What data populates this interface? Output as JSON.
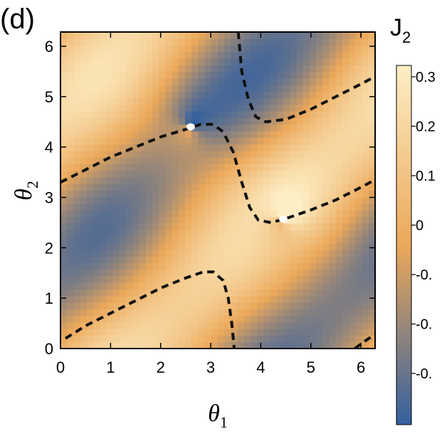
{
  "panel_label": "(d)",
  "colors": {
    "low": "#34609f",
    "mid": "#eba85a",
    "high": "#fdeec5",
    "contour": "#111111",
    "critical_point": "#ffffff"
  },
  "chart_data": {
    "type": "heatmap",
    "title": "",
    "xlabel": {
      "main": "θ",
      "sub": "1"
    },
    "ylabel": {
      "main": "θ",
      "sub": "2"
    },
    "xlim": [
      0,
      6.2832
    ],
    "ylim": [
      0,
      6.2832
    ],
    "xticks": [
      0,
      1,
      2,
      3,
      4,
      5,
      6
    ],
    "yticks": [
      0,
      1,
      2,
      3,
      4,
      5,
      6
    ],
    "xtick_labels": [
      "0",
      "1",
      "2",
      "3",
      "4",
      "5",
      "6"
    ],
    "ytick_labels": [
      "0",
      "1",
      "2",
      "3",
      "4",
      "5",
      "6"
    ],
    "grid": false,
    "colorbar": {
      "title": {
        "main": "J",
        "sub": "2"
      },
      "range": [
        -0.35,
        0.35
      ],
      "tick_labels": [
        "0.3",
        "0.2",
        "0.1",
        "0",
        "-0.",
        "-0.",
        "-0."
      ]
    },
    "critical_points": [
      {
        "x": 2.6,
        "y": 4.4
      },
      {
        "x": 4.45,
        "y": 2.57
      }
    ],
    "zero_contours": [
      {
        "points": [
          [
            0,
            3.3
          ],
          [
            0.5,
            3.55
          ],
          [
            1.0,
            3.8
          ],
          [
            1.5,
            4.0
          ],
          [
            2.0,
            4.2
          ],
          [
            2.5,
            4.35
          ],
          [
            2.8,
            4.45
          ],
          [
            3.05,
            4.45
          ],
          [
            3.25,
            4.3
          ],
          [
            3.45,
            3.9
          ],
          [
            3.62,
            3.3
          ],
          [
            3.78,
            2.8
          ],
          [
            3.95,
            2.55
          ],
          [
            4.2,
            2.5
          ],
          [
            4.5,
            2.58
          ],
          [
            5.0,
            2.75
          ],
          [
            5.5,
            2.95
          ],
          [
            6.0,
            3.2
          ],
          [
            6.2832,
            3.35
          ]
        ]
      },
      {
        "points": [
          [
            0.1,
            0.2
          ],
          [
            0.5,
            0.45
          ],
          [
            1.0,
            0.7
          ],
          [
            1.5,
            0.95
          ],
          [
            2.0,
            1.2
          ],
          [
            2.5,
            1.4
          ],
          [
            2.85,
            1.52
          ],
          [
            3.05,
            1.52
          ],
          [
            3.25,
            1.35
          ],
          [
            3.35,
            1.0
          ],
          [
            3.42,
            0.5
          ],
          [
            3.47,
            0
          ]
        ]
      },
      {
        "points": [
          [
            3.55,
            6.2832
          ],
          [
            3.62,
            5.5
          ],
          [
            3.75,
            4.95
          ],
          [
            3.9,
            4.6
          ],
          [
            4.1,
            4.5
          ],
          [
            4.5,
            4.55
          ],
          [
            5.0,
            4.75
          ],
          [
            5.5,
            5.0
          ],
          [
            6.0,
            5.25
          ],
          [
            6.2832,
            5.4
          ]
        ]
      },
      {
        "points": [
          [
            5.88,
            0
          ],
          [
            6.05,
            0.13
          ],
          [
            6.2832,
            0.28
          ]
        ]
      }
    ]
  }
}
